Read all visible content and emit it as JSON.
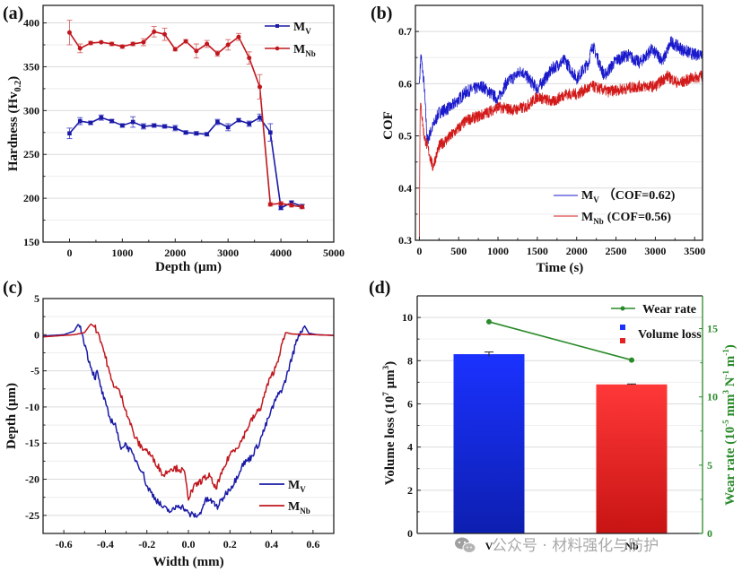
{
  "chart_data": [
    {
      "panel": "(a)",
      "type": "line",
      "xlabel": "Depth (μm)",
      "ylabel": "Hardness (Hv0.2)",
      "ylabel_main": "Hardness (Hv",
      "ylabel_sub": "0.2",
      "xlim": [
        -500,
        5000
      ],
      "ylim": [
        150,
        420
      ],
      "xticks": [
        0,
        1000,
        2000,
        3000,
        4000,
        5000
      ],
      "yticks": [
        150,
        200,
        250,
        300,
        350,
        400
      ],
      "grid": true,
      "legend": "top-right",
      "x": [
        0,
        200,
        400,
        600,
        800,
        1000,
        1200,
        1400,
        1600,
        1800,
        2000,
        2200,
        2400,
        2600,
        2800,
        3000,
        3200,
        3400,
        3600,
        3800,
        4000,
        4200,
        4400
      ],
      "series": [
        {
          "name": "MV",
          "label_main": "M",
          "label_sub": "V",
          "color": "#1a1aa6",
          "values": [
            274,
            288,
            286,
            292,
            288,
            283,
            287,
            282,
            283,
            282,
            280,
            275,
            274,
            273,
            287,
            281,
            289,
            285,
            292,
            275,
            189,
            195,
            191
          ],
          "errors": [
            6,
            4,
            2,
            3,
            2,
            2,
            6,
            3,
            2,
            2,
            3,
            2,
            2,
            2,
            3,
            4,
            2,
            3,
            4,
            10,
            2,
            2,
            2
          ]
        },
        {
          "name": "MNb",
          "label_main": "M",
          "label_sub": "Nb",
          "color": "#c0171e",
          "values": [
            389,
            371,
            377,
            378,
            376,
            373,
            376,
            378,
            390,
            387,
            370,
            379,
            368,
            376,
            365,
            375,
            384,
            360,
            327,
            193,
            194,
            192,
            190
          ],
          "errors": [
            14,
            5,
            2,
            1,
            2,
            2,
            2,
            4,
            6,
            7,
            2,
            2,
            8,
            4,
            3,
            6,
            4,
            7,
            14,
            2,
            2,
            2,
            2
          ]
        }
      ]
    },
    {
      "panel": "(b)",
      "type": "line",
      "xlabel": "Time (s)",
      "ylabel": "COF",
      "xlim": [
        -50,
        3600
      ],
      "ylim": [
        0.3,
        0.75
      ],
      "xticks": [
        0,
        500,
        1000,
        1500,
        2000,
        2500,
        3000,
        3500
      ],
      "yticks": [
        0.3,
        0.4,
        0.5,
        0.6,
        0.7
      ],
      "grid": true,
      "legend": "bottom-right",
      "series": [
        {
          "name": "MV (COF=0.62)",
          "label_main": "M",
          "label_sub": "V",
          "label_suffix": "（COF=0.62)",
          "color": "#1a1acc",
          "x": [
            0,
            20,
            60,
            100,
            150,
            250,
            400,
            600,
            800,
            1000,
            1100,
            1300,
            1500,
            1700,
            1850,
            2000,
            2150,
            2200,
            2350,
            2500,
            2650,
            2800,
            2950,
            3100,
            3200,
            3350,
            3500,
            3600
          ],
          "values": [
            0.6,
            0.655,
            0.6,
            0.49,
            0.51,
            0.545,
            0.555,
            0.585,
            0.595,
            0.57,
            0.6,
            0.625,
            0.59,
            0.63,
            0.645,
            0.61,
            0.64,
            0.675,
            0.615,
            0.645,
            0.655,
            0.64,
            0.665,
            0.645,
            0.68,
            0.665,
            0.655,
            0.66
          ]
        },
        {
          "name": "MNb (COF=0.56)",
          "label_main": "M",
          "label_sub": "Nb",
          "label_suffix": "(COF=0.56)",
          "color": "#d21a1a",
          "x": [
            0,
            10,
            25,
            60,
            120,
            170,
            250,
            400,
            600,
            800,
            1000,
            1200,
            1350,
            1500,
            1700,
            1850,
            2000,
            2200,
            2400,
            2600,
            2800,
            3000,
            3150,
            3300,
            3450,
            3600
          ],
          "values": [
            0.3,
            0.56,
            0.55,
            0.5,
            0.47,
            0.44,
            0.48,
            0.5,
            0.53,
            0.54,
            0.555,
            0.55,
            0.555,
            0.575,
            0.565,
            0.58,
            0.58,
            0.595,
            0.585,
            0.59,
            0.595,
            0.595,
            0.615,
            0.6,
            0.61,
            0.615
          ]
        }
      ]
    },
    {
      "panel": "(c)",
      "type": "line",
      "xlabel": "Width (mm)",
      "ylabel": "Depth (μm)",
      "xlim": [
        -0.7,
        0.7
      ],
      "ylim": [
        -27.5,
        5
      ],
      "xticks": [
        -0.6,
        -0.4,
        -0.2,
        0.0,
        0.2,
        0.4,
        0.6
      ],
      "xtick_labels": [
        "-0.6",
        "-0.4",
        "-0.2",
        "0.0",
        "0.2",
        "0.4",
        "0.6"
      ],
      "yticks": [
        -25,
        -20,
        -15,
        -10,
        -5,
        0,
        5
      ],
      "grid": true,
      "legend": "bottom-right",
      "series": [
        {
          "name": "MV",
          "label_main": "M",
          "label_sub": "V",
          "color": "#1a1aa6",
          "x": [
            -0.7,
            -0.6,
            -0.55,
            -0.53,
            -0.51,
            -0.48,
            -0.45,
            -0.44,
            -0.42,
            -0.38,
            -0.35,
            -0.33,
            -0.3,
            -0.26,
            -0.22,
            -0.2,
            -0.15,
            -0.12,
            -0.08,
            -0.05,
            -0.02,
            0.0,
            0.05,
            0.08,
            0.1,
            0.14,
            0.18,
            0.22,
            0.26,
            0.3,
            0.34,
            0.38,
            0.42,
            0.46,
            0.5,
            0.53,
            0.56,
            0.58,
            0.62,
            0.7
          ],
          "values": [
            -0.2,
            0.0,
            0.5,
            1.5,
            0.0,
            -3.5,
            -6.0,
            -5.2,
            -7.5,
            -11.5,
            -12.5,
            -15.5,
            -15.2,
            -17.0,
            -19.0,
            -21.0,
            -23.0,
            -24.0,
            -24.5,
            -23.5,
            -24.0,
            -24.8,
            -25.1,
            -23.0,
            -22.8,
            -23.8,
            -22.0,
            -20.5,
            -18.0,
            -17.0,
            -15.0,
            -12.0,
            -9.0,
            -7.0,
            -3.0,
            0.0,
            1.2,
            0.2,
            0.0,
            -0.1
          ]
        },
        {
          "name": "MNb",
          "label_main": "M",
          "label_sub": "Nb",
          "color": "#c0171e",
          "x": [
            -0.7,
            -0.55,
            -0.5,
            -0.47,
            -0.45,
            -0.43,
            -0.4,
            -0.37,
            -0.33,
            -0.3,
            -0.26,
            -0.23,
            -0.2,
            -0.15,
            -0.12,
            -0.09,
            -0.05,
            -0.02,
            0.0,
            0.03,
            0.07,
            0.1,
            0.13,
            0.15,
            0.2,
            0.25,
            0.3,
            0.35,
            0.38,
            0.42,
            0.45,
            0.47,
            0.5,
            0.6,
            0.7
          ],
          "values": [
            -0.3,
            0.0,
            0.3,
            1.5,
            1.0,
            0.0,
            -3.0,
            -6.5,
            -8.0,
            -10.5,
            -14.0,
            -15.5,
            -16.0,
            -18.0,
            -19.5,
            -18.5,
            -18.5,
            -19.0,
            -22.5,
            -21.0,
            -20.0,
            -19.5,
            -21.3,
            -20.0,
            -16.5,
            -15.0,
            -12.0,
            -10.0,
            -7.0,
            -4.5,
            -1.5,
            0.3,
            0.1,
            0.0,
            -0.1
          ]
        }
      ]
    },
    {
      "panel": "(d)",
      "type": "bar",
      "categories": [
        "V",
        "Nb"
      ],
      "xlabel": "",
      "ylabel": "Volume loss (10^7 μm^3)",
      "ylabel_right": "Wear rate (10^-5 mm^3 N^-1 m^-1)",
      "ylim": [
        0,
        11
      ],
      "ylim_right": [
        0,
        17.4
      ],
      "yticks": [
        0,
        2,
        4,
        6,
        8,
        10
      ],
      "yticks_right": [
        0,
        5,
        10,
        15
      ],
      "grid": true,
      "legend": "top-right",
      "series": [
        {
          "name": "Volume loss",
          "type": "bar",
          "axis": "left",
          "values": [
            8.3,
            6.9
          ],
          "errors": [
            0.1,
            0.02
          ],
          "colors": [
            "#1a2ef0",
            "#e52222"
          ]
        },
        {
          "name": "Wear rate",
          "type": "line",
          "axis": "right",
          "values": [
            15.5,
            12.7
          ],
          "color": "#2a8a2a"
        }
      ]
    }
  ],
  "panels": {
    "a": {
      "label": "(a)"
    },
    "b": {
      "label": "(b)"
    },
    "c": {
      "label": "(c)"
    },
    "d": {
      "label": "(d)"
    }
  },
  "labels": {
    "a_xlabel": "Depth (μm)",
    "a_ylabel": "Hardness (Hv",
    "a_ylabel_sub": "0.2",
    "a_ylabel_end": ")",
    "b_xlabel": "Time (s)",
    "b_ylabel": "COF",
    "c_xlabel": "Width (mm)",
    "c_ylabel": "Depth (μm)",
    "d_ylabel": "Volume loss (10",
    "d_ylabel_sup": "7",
    "d_ylabel_mid": " μm",
    "d_ylabel_sup2": "3",
    "d_ylabel_end": ")",
    "d_ylabel_right_a": "Wear rate (10",
    "d_ylabel_right_sup1": "-5",
    "d_ylabel_right_b": " mm",
    "d_ylabel_right_sup2": "3",
    "d_ylabel_right_c": " N",
    "d_ylabel_right_sup3": "-1",
    "d_ylabel_right_d": " m",
    "d_ylabel_right_sup4": "-1",
    "d_ylabel_right_e": ")",
    "d_legend_wear": "Wear rate",
    "d_legend_volume": "Volume loss"
  },
  "watermark": {
    "icon": "wechat-icon",
    "text": "公众号 · 材料强化与防护"
  }
}
